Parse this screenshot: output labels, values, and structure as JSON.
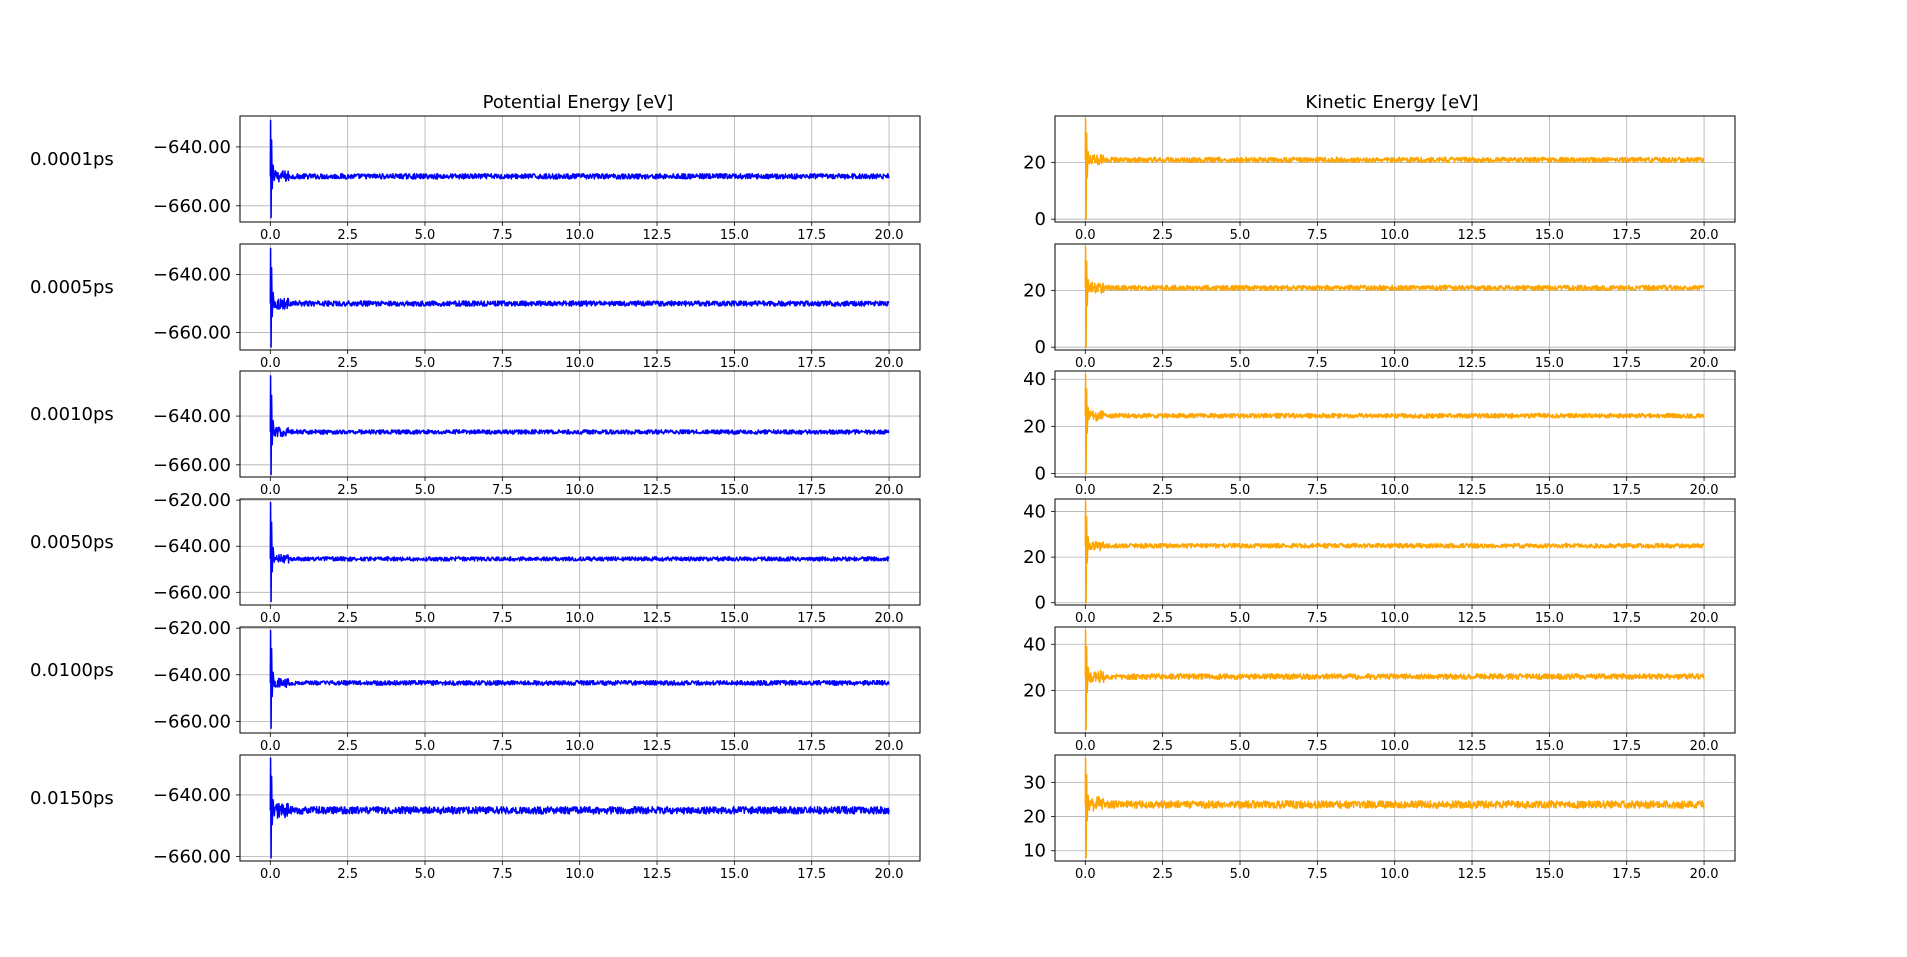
{
  "chart_data": {
    "type": "line",
    "layout": "6 rows x 2 columns of line plots",
    "columns": [
      {
        "title": "Potential Energy [eV]",
        "color": "#0000ff"
      },
      {
        "title": "Kinetic Energy [eV]",
        "color": "#ffa500"
      }
    ],
    "xlim": [
      -0.98,
      21.0
    ],
    "xticks": [
      0.0,
      2.5,
      5.0,
      7.5,
      10.0,
      12.5,
      15.0,
      17.5,
      20.0
    ],
    "x_range": [
      0,
      20
    ],
    "grid": true,
    "rows": [
      {
        "label": "0.0001ps",
        "potential": {
          "ylim": [
            -665.5,
            -629.5
          ],
          "yticks": [
            -640.0,
            -660.0
          ],
          "steady": -650.0,
          "noise": 0.9,
          "spike_high": -631.0,
          "spike_low": -664.0
        },
        "kinetic": {
          "ylim": [
            -1,
            36.5
          ],
          "yticks": [
            0,
            20
          ],
          "steady": 21.0,
          "noise": 0.9,
          "spike_high": 35.5,
          "spike_low": 0.0
        }
      },
      {
        "label": "0.0005ps",
        "potential": {
          "ylim": [
            -666,
            -629.5
          ],
          "yticks": [
            -640.0,
            -660.0
          ],
          "steady": -650.0,
          "noise": 0.9,
          "spike_high": -631.0,
          "spike_low": -665.0
        },
        "kinetic": {
          "ylim": [
            -1,
            36.5
          ],
          "yticks": [
            0,
            20
          ],
          "steady": 21.0,
          "noise": 0.9,
          "spike_high": 35.5,
          "spike_low": 0.0
        }
      },
      {
        "label": "0.0010ps",
        "potential": {
          "ylim": [
            -665,
            -621.5
          ],
          "yticks": [
            -640.0,
            -660.0
          ],
          "steady": -646.5,
          "noise": 0.9,
          "spike_high": -623.5,
          "spike_low": -664.0
        },
        "kinetic": {
          "ylim": [
            -1.5,
            43.5
          ],
          "yticks": [
            0,
            20,
            40
          ],
          "steady": 24.5,
          "noise": 1.0,
          "spike_high": 42.0,
          "spike_low": 0.0
        }
      },
      {
        "label": "0.0050ps",
        "potential": {
          "ylim": [
            -665.5,
            -619.5
          ],
          "yticks": [
            -620.0,
            -640.0,
            -660.0
          ],
          "steady": -645.5,
          "noise": 0.9,
          "spike_high": -621.0,
          "spike_low": -664.0
        },
        "kinetic": {
          "ylim": [
            -1,
            45.5
          ],
          "yticks": [
            0,
            20,
            40
          ],
          "steady": 25.0,
          "noise": 1.0,
          "spike_high": 44.5,
          "spike_low": 0.0
        }
      },
      {
        "label": "0.0100ps",
        "potential": {
          "ylim": [
            -665,
            -619.5
          ],
          "yticks": [
            -620.0,
            -640.0,
            -660.0
          ],
          "steady": -643.5,
          "noise": 1.0,
          "spike_high": -621.0,
          "spike_low": -663.0
        },
        "kinetic": {
          "ylim": [
            1.5,
            47.5
          ],
          "yticks": [
            20,
            40
          ],
          "steady": 26.0,
          "noise": 1.2,
          "spike_high": 46.0,
          "spike_low": 3.0
        },
        "note": "kinetic y axis shows ticks 20 and 40 only"
      },
      {
        "label": "0.0150ps",
        "potential": {
          "ylim": [
            -661.5,
            -627.0
          ],
          "yticks": [
            -640.0,
            -660.0
          ],
          "steady": -645.0,
          "noise": 1.2,
          "spike_high": -628.0,
          "spike_low": -660.5
        },
        "kinetic": {
          "ylim": [
            7.0,
            38.0
          ],
          "yticks": [
            10,
            20,
            30
          ],
          "steady": 23.5,
          "noise": 1.1,
          "spike_high": 37.0,
          "spike_low": 8.0
        }
      }
    ]
  }
}
